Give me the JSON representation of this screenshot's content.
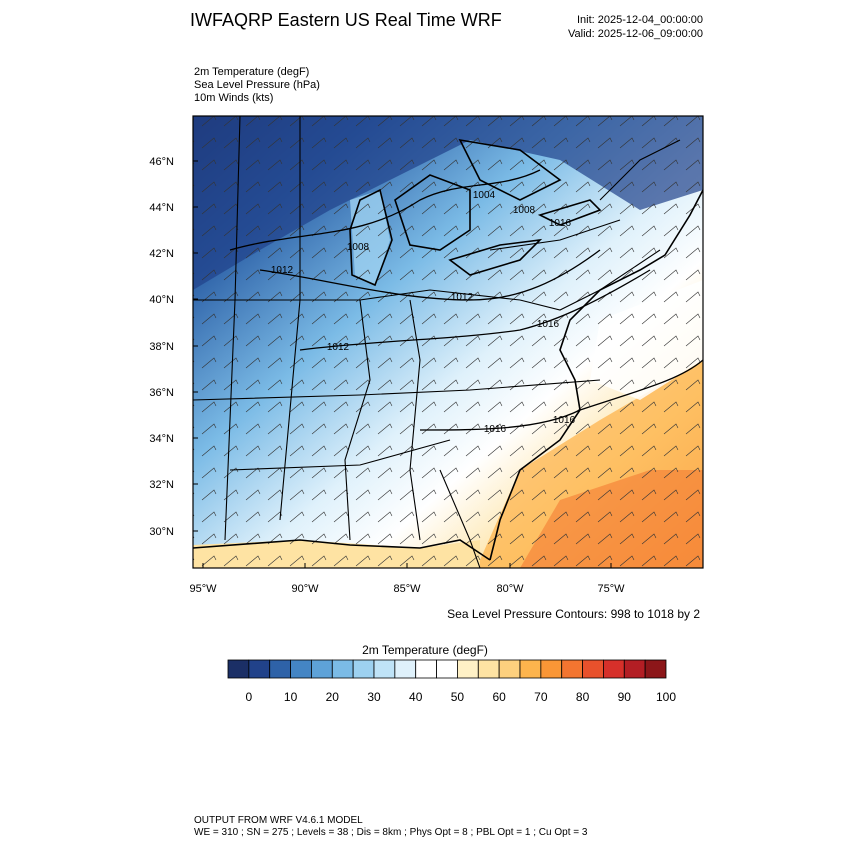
{
  "header": {
    "title": "IWFAQRP Eastern US Real Time WRF",
    "init": "Init: 2025-12-04_00:00:00",
    "valid": "Valid: 2025-12-06_09:00:00"
  },
  "fields": [
    "2m Temperature   (degF)",
    "Sea Level Pressure   (hPa)",
    "10m Winds   (kts)"
  ],
  "map": {
    "lat_labels": [
      "46°N",
      "44°N",
      "42°N",
      "40°N",
      "38°N",
      "36°N",
      "34°N",
      "32°N",
      "30°N"
    ],
    "lon_labels": [
      "95°W",
      "90°W",
      "85°W",
      "80°W",
      "75°W"
    ],
    "isobar_labels": [
      "1004",
      "1008",
      "1008",
      "1012",
      "1012",
      "1012",
      "1016",
      "1016",
      "1016",
      "1016"
    ],
    "colors": {
      "cold": "#1f3f8a",
      "cool": "#9dd1f0",
      "neutral": "#ffffff",
      "warm": "#fdb44d",
      "hot": "#e8582c"
    }
  },
  "contour_note": "Sea Level Pressure Contours: 998 to 1018 by 2",
  "colorbar": {
    "title": "2m Temperature  (degF)",
    "colors": [
      "#1b2f66",
      "#21428a",
      "#2e62a8",
      "#4485c4",
      "#5ea2d8",
      "#7bbbe6",
      "#9dd1f0",
      "#bfe3f7",
      "#dff1fb",
      "#ffffff",
      "#ffffff",
      "#fff1c6",
      "#fee3a3",
      "#fdd07e",
      "#fdb44d",
      "#f99636",
      "#f37530",
      "#e8512c",
      "#d6302a",
      "#b31e24",
      "#8c1619"
    ],
    "labels": [
      "0",
      "10",
      "20",
      "30",
      "40",
      "50",
      "60",
      "70",
      "80",
      "90",
      "100"
    ]
  },
  "footer": {
    "line1": "OUTPUT FROM WRF V4.6.1 MODEL",
    "line2": "WE = 310 ; SN = 275 ; Levels = 38 ; Dis = 8km ; Phys Opt = 8 ; PBL Opt = 1 ; Cu Opt = 3"
  }
}
